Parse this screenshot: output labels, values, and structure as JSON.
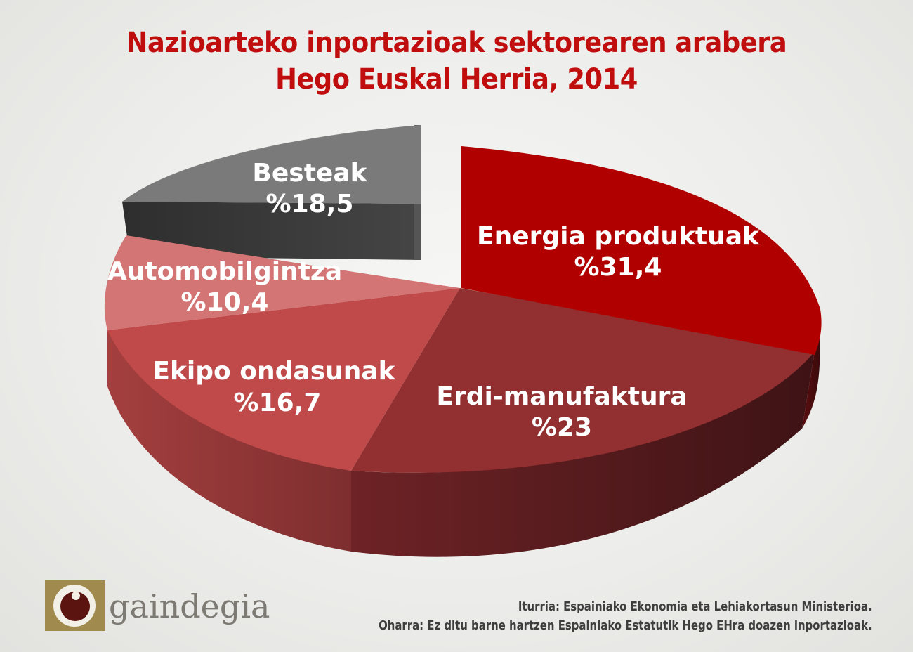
{
  "title_line1": "Nazioarteko inportazioak sektorearen arabera",
  "title_line2": "Hego Euskal Herria, 2014",
  "chart_data": {
    "type": "pie",
    "title": "Nazioarteko inportazioak sektorearen arabera Hego Euskal Herria, 2014",
    "categories": [
      "Energia produktuak",
      "Erdi-manufaktura",
      "Ekipo ondasunak",
      "Automobilgintza",
      "Besteak"
    ],
    "values": [
      31.4,
      23,
      16.7,
      10.4,
      18.5
    ],
    "value_labels": [
      "%31,4",
      "%23",
      "%16,7",
      "%10,4",
      "%18,5"
    ],
    "colors": [
      "#b30000",
      "#8c2424",
      "#bf4a4a",
      "#d67474",
      "#7a7a7a"
    ],
    "exploded": [
      "Energia produktuak",
      "Besteak"
    ],
    "style": "3d-pie",
    "legend": "none"
  },
  "source_note": "Iturria: Espainiako Ekonomia eta Lehiakortasun Ministerioa.",
  "note": "Oharra: Ez ditu barne hartzen Espainiako Estatutik Hego EHra doazen inportazioak.",
  "logo": {
    "text": "gaindegia",
    "icon": "gaindegia-logo-icon"
  }
}
